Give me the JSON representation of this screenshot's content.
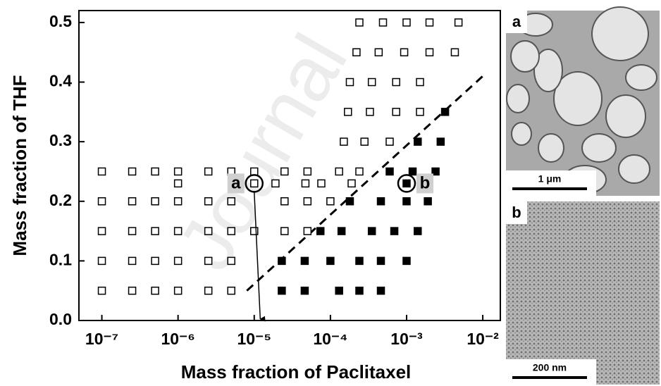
{
  "chart_data": {
    "type": "scatter",
    "watermark": "Journal",
    "xlabel": "Mass fraction of Paclitaxel",
    "ylabel": "Mass fraction of THF",
    "xscale": "log",
    "xlim": [
      5e-08,
      0.017
    ],
    "ylim": [
      0,
      0.52
    ],
    "xticks": [
      {
        "value": 1e-07,
        "label": "10⁻⁷"
      },
      {
        "value": 1e-06,
        "label": "10⁻⁶"
      },
      {
        "value": 1e-05,
        "label": "10⁻⁵"
      },
      {
        "value": 0.0001,
        "label": "10⁻⁴"
      },
      {
        "value": 0.001,
        "label": "10⁻³"
      },
      {
        "value": 0.01,
        "label": "10⁻²"
      }
    ],
    "yticks": [
      {
        "value": 0,
        "label": "0.0"
      },
      0.1,
      0.2,
      0.3,
      0.4,
      0.5
    ],
    "series": [
      {
        "marker": "open",
        "color": "#000000",
        "x": [
          1e-07,
          2.5e-07,
          5e-07,
          1e-06,
          2.5e-06,
          5e-06,
          1e-07,
          2.5e-07,
          5e-07,
          1e-06,
          2.5e-06,
          5e-06,
          1e-07,
          2.5e-07,
          5e-07,
          1e-06,
          2.5e-06,
          5e-06,
          1e-05,
          2.5e-05,
          5e-05,
          1e-07,
          2.5e-07,
          5e-07,
          1e-06,
          2.5e-06,
          5e-06,
          2.5e-05,
          5e-05,
          0.0001,
          1e-06,
          1e-05,
          1.9e-05,
          4.7e-05,
          7.6e-05,
          0.00019,
          1e-07,
          2.5e-07,
          5e-07,
          1e-06,
          2.5e-06,
          5e-06,
          1e-05,
          2.5e-05,
          5e-05,
          0.00013,
          0.00024,
          0.00015,
          0.00028,
          0.0006,
          0.00017,
          0.00033,
          0.00073,
          0.0015,
          0.00018,
          0.00035,
          0.00073,
          0.0015,
          0.00022,
          0.00043,
          0.00093,
          0.002,
          0.0043,
          0.00024,
          0.00049,
          0.001,
          0.002,
          0.0048
        ],
        "values": [
          0.05,
          0.05,
          0.05,
          0.05,
          0.05,
          0.05,
          0.1,
          0.1,
          0.1,
          0.1,
          0.1,
          0.1,
          0.15,
          0.15,
          0.15,
          0.15,
          0.15,
          0.15,
          0.15,
          0.15,
          0.15,
          0.2,
          0.2,
          0.2,
          0.2,
          0.2,
          0.2,
          0.2,
          0.2,
          0.2,
          0.23,
          0.23,
          0.23,
          0.23,
          0.23,
          0.23,
          0.25,
          0.25,
          0.25,
          0.25,
          0.25,
          0.25,
          0.25,
          0.25,
          0.25,
          0.25,
          0.25,
          0.3,
          0.3,
          0.3,
          0.35,
          0.35,
          0.35,
          0.35,
          0.4,
          0.4,
          0.4,
          0.4,
          0.45,
          0.45,
          0.45,
          0.45,
          0.45,
          0.5,
          0.5,
          0.5,
          0.5,
          0.5
        ]
      },
      {
        "marker": "filled",
        "color": "#000000",
        "x": [
          2.3e-05,
          4.6e-05,
          0.00013,
          0.00024,
          0.00046,
          2.3e-05,
          4.6e-05,
          0.0001,
          0.00024,
          0.00046,
          0.001,
          7.4e-05,
          0.00014,
          0.00035,
          0.00069,
          0.0014,
          0.00018,
          0.00046,
          0.001,
          0.0019,
          0.001,
          0.0006,
          0.0012,
          0.0024,
          0.0014,
          0.0028,
          0.0032
        ],
        "values": [
          0.05,
          0.05,
          0.05,
          0.05,
          0.05,
          0.1,
          0.1,
          0.1,
          0.1,
          0.1,
          0.1,
          0.15,
          0.15,
          0.15,
          0.15,
          0.15,
          0.2,
          0.2,
          0.2,
          0.2,
          0.23,
          0.25,
          0.25,
          0.25,
          0.3,
          0.3,
          0.35
        ]
      }
    ],
    "boundary": {
      "x": [
        8e-06,
        0.01
      ],
      "values": [
        0.05,
        0.41
      ],
      "style": "dashed",
      "color": "#000000"
    },
    "annotations": [
      {
        "text": "a",
        "x": 1e-05,
        "y": 0.23,
        "side": "left",
        "arrow_to": [
          1.2e-05,
          0
        ]
      },
      {
        "text": "b",
        "x": 0.001,
        "y": 0.23,
        "side": "right"
      }
    ]
  },
  "micrographs": [
    {
      "label": "a",
      "scale_bar": "1 μm"
    },
    {
      "label": "b",
      "scale_bar": "200 nm"
    }
  ]
}
